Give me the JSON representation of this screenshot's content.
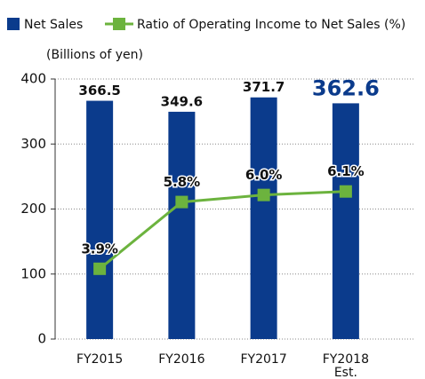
{
  "chart_data": {
    "type": "bar",
    "unit_label": "(Billions of yen)",
    "categories": [
      "FY2015",
      "FY2016",
      "FY2017",
      "FY2018 Est."
    ],
    "series": [
      {
        "name": "Net Sales",
        "type": "bar",
        "color": "#0b3b8c",
        "values": [
          366.5,
          349.6,
          371.7,
          362.6
        ]
      },
      {
        "name": "Ratio of Operating Income to Net Sales (%)",
        "type": "line",
        "axis": "y2",
        "color": "#6cb33e",
        "values": [
          3.9,
          5.8,
          6.0,
          6.1
        ],
        "value_labels": [
          "3.9%",
          "5.8%",
          "6.0%",
          "6.1%"
        ]
      }
    ],
    "ylim": [
      0,
      400
    ],
    "yticks": [
      0,
      100,
      200,
      300,
      400
    ],
    "y2lim": [
      1.9,
      9.3
    ],
    "grid": true,
    "legend": "top"
  }
}
